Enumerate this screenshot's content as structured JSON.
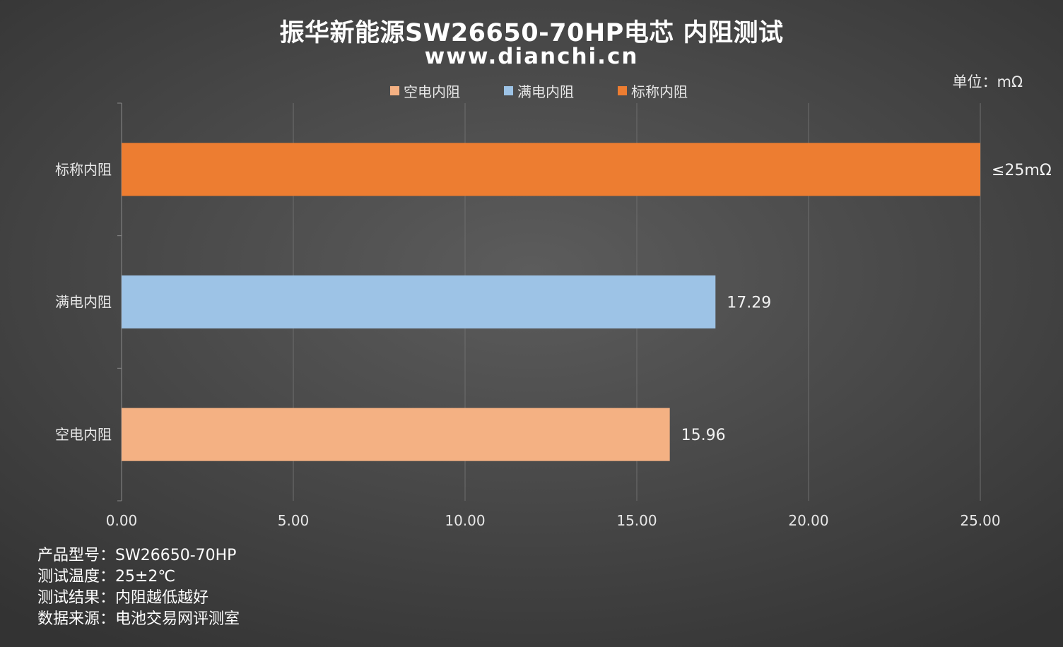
{
  "title": "振华新能源SW26650-70HP电芯 内阻测试",
  "subtitle": "www.dianchi.cn",
  "unit": "单位：mΩ",
  "legend": [
    {
      "label": "空电内阻",
      "color": "#F4B183"
    },
    {
      "label": "满电内阻",
      "color": "#9DC3E6"
    },
    {
      "label": "标称内阻",
      "color": "#ED7D31"
    }
  ],
  "notes": [
    "产品型号：SW26650-70HP",
    "测试温度：25±2℃",
    "测试结果：内阻越低越好",
    "数据来源：电池交易网评测室"
  ],
  "chart_data": {
    "type": "bar",
    "orientation": "horizontal",
    "categories": [
      "标称内阻",
      "满电内阻",
      "空电内阻"
    ],
    "values": [
      25,
      17.29,
      15.96
    ],
    "data_labels": [
      "≤25mΩ",
      "17.29",
      "15.96"
    ],
    "colors": [
      "#ED7D31",
      "#9DC3E6",
      "#F4B183"
    ],
    "xlim": [
      0,
      25
    ],
    "xticks": [
      "0.00",
      "5.00",
      "10.00",
      "15.00",
      "20.00",
      "25.00"
    ],
    "grid": "vertical",
    "legend_position": "top"
  }
}
